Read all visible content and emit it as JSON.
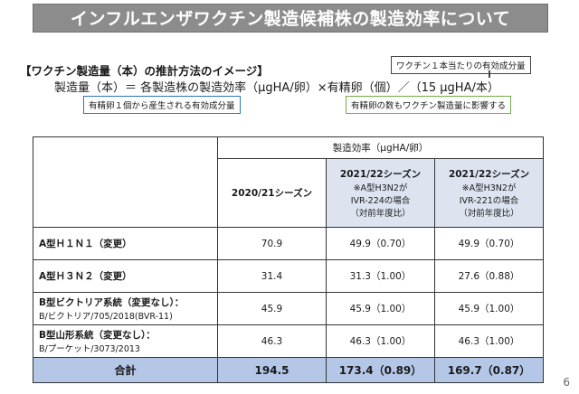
{
  "title": "インフルエンザワクチン製造候補株の製造効率について",
  "heading": "【ワクチン製造量（本）の推計方法のイメージ】",
  "formula": "製造量（本）＝ 各製造株の製造効率（μgHA/卵）×有精卵（個）／（15 μgHA/本）",
  "callouts": {
    "per_dose": "ワクチン１本当たりの有効成分量",
    "per_egg": "有精卵１個から産生される有効成分量",
    "egg_count": "有精卵の数もワクチン製造量に影響する"
  },
  "table": {
    "group_header": "製造効率（μgHA/卵）",
    "columns": [
      {
        "label": "2020/21シーズン",
        "note1": "",
        "note2": "",
        "note3": ""
      },
      {
        "label": "2021/22シーズン",
        "note1": "※A型H3N2が",
        "note2": "IVR-224の場合",
        "note3": "（対前年度比）"
      },
      {
        "label": "2021/22シーズン",
        "note1": "※A型H3N2が",
        "note2": "IVR-221の場合",
        "note3": "（対前年度比）"
      }
    ],
    "rows": [
      {
        "name": "A型Ｈ１Ｎ１（変更）",
        "strain": "",
        "v1": "70.9",
        "v2": "49.9（0.70）",
        "v3": "49.9（0.70）"
      },
      {
        "name": "A型Ｈ３Ｎ２（変更）",
        "strain": "",
        "v1": "31.4",
        "v2": "31.3（1.00）",
        "v3": "27.6（0.88）"
      },
      {
        "name": "B型ビクトリア系統（変更なし）：",
        "strain": "B/ビクトリア/705/2018(BVR-11)",
        "v1": "45.9",
        "v2": "45.9（1.00）",
        "v3": "45.9（1.00）"
      },
      {
        "name": "B型山形系統（変更なし）：",
        "strain": "B/プーケット/3073/2013",
        "v1": "46.3",
        "v2": "46.3（1.00）",
        "v3": "46.3（1.00）"
      }
    ],
    "total": {
      "label": "合計",
      "v1": "194.5",
      "v2": "173.4（0.89）",
      "v3": "169.7（0.87）"
    }
  },
  "page_number": "6",
  "colors": {
    "title_bg": "#8c8c8c",
    "total_bg": "#b4c7e7",
    "blue_border": "#2e75b6",
    "green_border": "#70ad47"
  }
}
